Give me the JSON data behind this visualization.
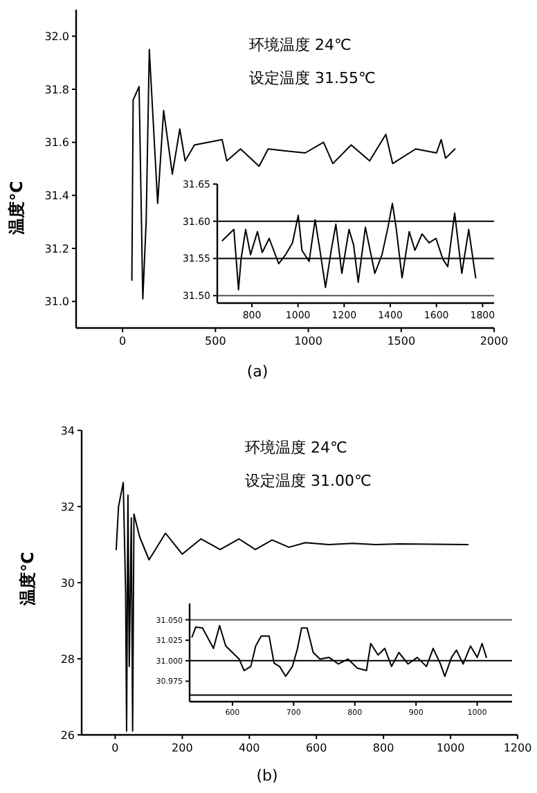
{
  "chart_data": [
    {
      "type": "line",
      "ylabel": "温度℃",
      "xlim": [
        -250,
        2000
      ],
      "xticks": [
        0,
        500,
        1000,
        1500,
        2000
      ],
      "ylim": [
        30.9,
        32.1
      ],
      "yticks": [
        {
          "value": 31.0,
          "label": "31.0"
        },
        {
          "value": 31.2,
          "label": "31.2"
        },
        {
          "value": 31.4,
          "label": "31.4"
        },
        {
          "value": 31.6,
          "label": "31.6"
        },
        {
          "value": 31.8,
          "label": "31.8"
        },
        {
          "value": 32.0,
          "label": "32.0"
        }
      ],
      "annotations": [
        "环境温度 24℃",
        "设定温度 31.55℃",
        "(a)"
      ],
      "series": [
        {
          "color": "#000000",
          "x": [
            50,
            57,
            89,
            109,
            127,
            144,
            189,
            221,
            268,
            308,
            337,
            387,
            536,
            561,
            635,
            735,
            784,
            883,
            983,
            1082,
            1132,
            1231,
            1330,
            1417,
            1454,
            1578,
            1690,
            1715,
            1739,
            1789
          ],
          "values": [
            31.08,
            31.76,
            31.81,
            31.01,
            31.3,
            31.95,
            31.37,
            31.72,
            31.48,
            31.65,
            31.53,
            31.59,
            31.61,
            31.53,
            31.575,
            31.51,
            31.575,
            31.567,
            31.56,
            31.6,
            31.52,
            31.59,
            31.53,
            31.63,
            31.52,
            31.575,
            31.56,
            31.61,
            31.54,
            31.575
          ]
        }
      ]
    },
    {
      "type": "line",
      "xlim": [
        650,
        1850
      ],
      "xticks": [
        800,
        1000,
        1200,
        1400,
        1600,
        1800
      ],
      "ylim": [
        31.49,
        31.65
      ],
      "yticks": [
        {
          "value": 31.5,
          "label": "31.50"
        },
        {
          "value": 31.55,
          "label": "31.55"
        },
        {
          "value": 31.6,
          "label": "31.60"
        },
        {
          "value": 31.65,
          "label": "31.65"
        }
      ],
      "ref_lines": [
        {
          "axis": "y",
          "value": 31.6,
          "color": "#000000"
        },
        {
          "axis": "y",
          "value": 31.55,
          "color": "#000000"
        },
        {
          "axis": "y",
          "value": 31.5,
          "color": "#555555"
        }
      ],
      "series": [
        {
          "color": "#000000",
          "x": [
            672,
            692,
            722,
            732,
            742,
            753,
            773,
            794,
            824,
            845,
            875,
            916,
            946,
            976,
            1001,
            1017,
            1048,
            1074,
            1095,
            1119,
            1144,
            1164,
            1190,
            1221,
            1241,
            1261,
            1292,
            1333,
            1364,
            1390,
            1409,
            1425,
            1451,
            1482,
            1507,
            1538,
            1568,
            1598,
            1628,
            1649,
            1679,
            1710,
            1740,
            1770
          ],
          "values": [
            31.574,
            31.58,
            31.589,
            31.549,
            31.508,
            31.549,
            31.589,
            31.555,
            31.586,
            31.558,
            31.577,
            31.543,
            31.555,
            31.571,
            31.608,
            31.561,
            31.546,
            31.602,
            31.561,
            31.511,
            31.561,
            31.596,
            31.53,
            31.589,
            31.568,
            31.518,
            31.592,
            31.53,
            31.555,
            31.592,
            31.624,
            31.592,
            31.524,
            31.586,
            31.561,
            31.583,
            31.571,
            31.577,
            31.549,
            31.539,
            31.611,
            31.53,
            31.589,
            31.524
          ]
        }
      ]
    },
    {
      "type": "line",
      "ylabel": "温度℃",
      "xlim": [
        -100,
        1200
      ],
      "xticks": [
        0,
        200,
        400,
        600,
        800,
        1000,
        1200
      ],
      "ylim": [
        26,
        34
      ],
      "yticks": [
        26,
        28,
        30,
        32,
        34
      ],
      "annotations": [
        "环境温度 24℃",
        "设定温度 31.00℃",
        "(b)"
      ],
      "series": [
        {
          "color": "#000000",
          "x": [
            3,
            10,
            24,
            31,
            34,
            38,
            42,
            48,
            52,
            56,
            73,
            101,
            150,
            200,
            256,
            313,
            369,
            418,
            468,
            518,
            567,
            637,
            707,
            777,
            848,
            1052
          ],
          "values": [
            30.87,
            32.0,
            32.63,
            29.8,
            26.1,
            32.3,
            27.8,
            31.7,
            26.1,
            31.8,
            31.2,
            30.6,
            31.3,
            30.75,
            31.15,
            30.87,
            31.15,
            30.87,
            31.12,
            30.93,
            31.05,
            31.0,
            31.03,
            31.0,
            31.02,
            31.0
          ]
        }
      ]
    },
    {
      "type": "line",
      "xlim": [
        530,
        1057
      ],
      "xticks": [
        600,
        700,
        800,
        900,
        1000
      ],
      "ylim": [
        30.95,
        31.07
      ],
      "yticks": [
        {
          "value": 30.975,
          "label": "30.975"
        },
        {
          "value": 31.0,
          "label": "31.000"
        },
        {
          "value": 31.025,
          "label": "31.025"
        },
        {
          "value": 31.05,
          "label": "31.050"
        }
      ],
      "ref_lines": [
        {
          "axis": "y",
          "value": 31.05,
          "color": "#555555"
        },
        {
          "axis": "y",
          "value": 31.0,
          "color": "#000000"
        },
        {
          "axis": "y",
          "value": 30.958,
          "color": "#000000"
        }
      ],
      "series": [
        {
          "color": "#000000",
          "x": [
            534,
            540,
            551,
            559,
            569,
            579,
            589,
            600,
            611,
            619,
            630,
            638,
            647,
            660,
            668,
            677,
            687,
            698,
            706,
            713,
            722,
            732,
            743,
            758,
            773,
            789,
            804,
            819,
            826,
            838,
            849,
            860,
            872,
            887,
            902,
            917,
            928,
            940,
            947,
            958,
            966,
            977,
            989,
            1000,
            1008,
            1015
          ],
          "values": [
            31.029,
            31.041,
            31.04,
            31.029,
            31.015,
            31.043,
            31.018,
            31.01,
            31.002,
            30.988,
            30.993,
            31.018,
            31.03,
            31.03,
            30.997,
            30.993,
            30.981,
            30.993,
            31.014,
            31.04,
            31.04,
            31.01,
            31.002,
            31.004,
            30.996,
            31.002,
            30.991,
            30.988,
            31.021,
            31.007,
            31.015,
            30.993,
            31.01,
            30.996,
            31.004,
            30.993,
            31.015,
            30.996,
            30.981,
            31.004,
            31.013,
            30.996,
            31.018,
            31.004,
            31.021,
            31.004
          ]
        }
      ]
    }
  ]
}
